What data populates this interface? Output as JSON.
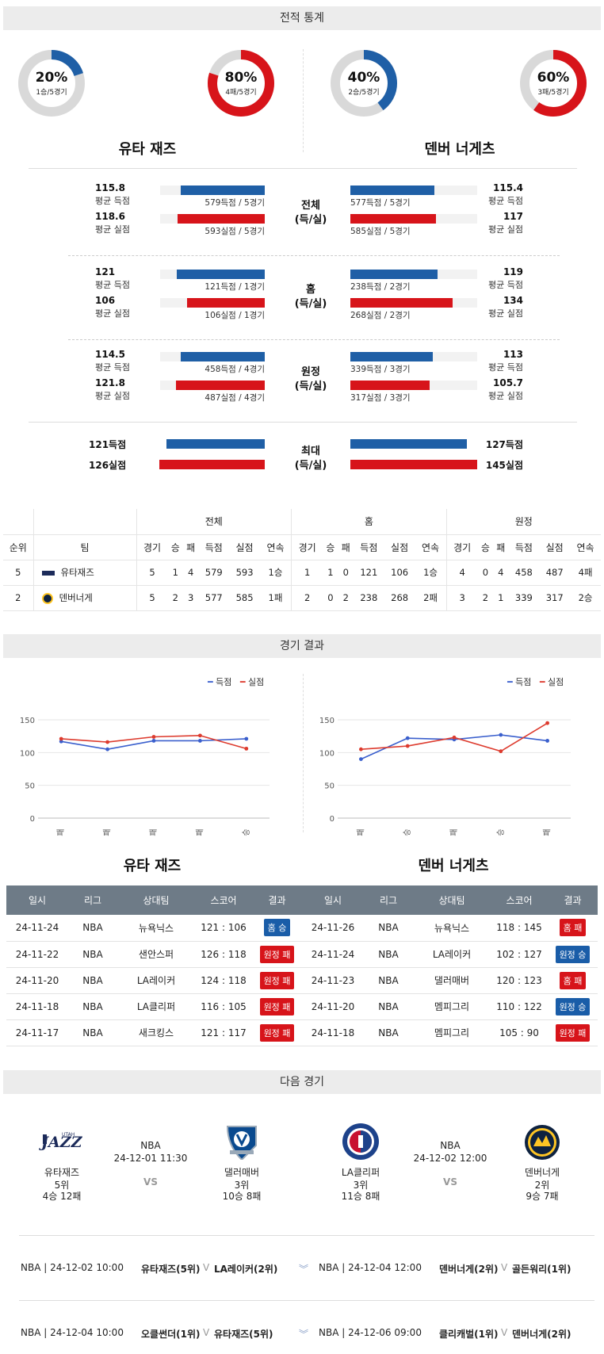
{
  "sections": {
    "stats": "전적 통계",
    "results": "경기 결과",
    "next": "다음 경기"
  },
  "teams": {
    "home": "유타 재즈",
    "away": "덴버 너게츠"
  },
  "donuts": [
    {
      "pct": "20%",
      "sub": "1승/5경기",
      "value": 0.2,
      "color": "#1f5fa6"
    },
    {
      "pct": "80%",
      "sub": "4패/5경기",
      "value": 0.8,
      "color": "#d7141a"
    },
    {
      "pct": "40%",
      "sub": "2승/5경기",
      "value": 0.4,
      "color": "#1f5fa6"
    },
    {
      "pct": "60%",
      "sub": "3패/5경기",
      "value": 0.6,
      "color": "#d7141a"
    }
  ],
  "stat_groups": [
    {
      "center": [
        "전체",
        "(득/실)"
      ],
      "left": [
        {
          "val": "115.8",
          "lbl": "평균 득점",
          "bar": "579득점 / 5경기",
          "ratio": 0.8
        },
        {
          "val": "118.6",
          "lbl": "평균 실점",
          "bar": "593실점 / 5경기",
          "ratio": 0.83
        }
      ],
      "right": [
        {
          "val": "115.4",
          "lbl": "평균 득점",
          "bar": "577득점 / 5경기",
          "ratio": 0.8
        },
        {
          "val": "117",
          "lbl": "평균 실점",
          "bar": "585실점 / 5경기",
          "ratio": 0.82
        }
      ]
    },
    {
      "center": [
        "홈",
        "(득/실)"
      ],
      "left": [
        {
          "val": "121",
          "lbl": "평균 득점",
          "bar": "121득점 / 1경기",
          "ratio": 0.84
        },
        {
          "val": "106",
          "lbl": "평균 실점",
          "bar": "106실점 / 1경기",
          "ratio": 0.74
        }
      ],
      "right": [
        {
          "val": "119",
          "lbl": "평균 득점",
          "bar": "238득점 / 2경기",
          "ratio": 0.83
        },
        {
          "val": "134",
          "lbl": "평균 실점",
          "bar": "268실점 / 2경기",
          "ratio": 0.98
        }
      ]
    },
    {
      "center": [
        "원정",
        "(득/실)"
      ],
      "left": [
        {
          "val": "114.5",
          "lbl": "평균 득점",
          "bar": "458득점 / 4경기",
          "ratio": 0.8
        },
        {
          "val": "121.8",
          "lbl": "평균 실점",
          "bar": "487실점 / 4경기",
          "ratio": 0.85
        }
      ],
      "right": [
        {
          "val": "113",
          "lbl": "평균 득점",
          "bar": "339득점 / 3경기",
          "ratio": 0.79
        },
        {
          "val": "105.7",
          "lbl": "평균 실점",
          "bar": "317실점 / 3경기",
          "ratio": 0.76
        }
      ]
    }
  ],
  "max_group": {
    "center": [
      "최대",
      "(득/실)"
    ],
    "left": [
      {
        "val": "121득점",
        "ratio": 0.84
      },
      {
        "val": "126실점",
        "ratio": 0.9
      }
    ],
    "right": [
      {
        "val": "127득점",
        "ratio": 0.92
      },
      {
        "val": "145실점",
        "ratio": 1.0
      }
    ]
  },
  "standings": {
    "groups": [
      "전체",
      "홈",
      "원정"
    ],
    "cols": [
      "순위",
      "팀",
      "경기",
      "승",
      "패",
      "득점",
      "실점",
      "연속",
      "경기",
      "승",
      "패",
      "득점",
      "실점",
      "연속",
      "경기",
      "승",
      "패",
      "득점",
      "실점",
      "연속"
    ],
    "rows": [
      [
        "5",
        "유타재즈",
        "5",
        "1",
        "4",
        "579",
        "593",
        "1승",
        "1",
        "1",
        "0",
        "121",
        "106",
        "1승",
        "4",
        "0",
        "4",
        "458",
        "487",
        "4패"
      ],
      [
        "2",
        "덴버너게",
        "5",
        "2",
        "3",
        "577",
        "585",
        "1패",
        "2",
        "0",
        "2",
        "238",
        "268",
        "2패",
        "3",
        "2",
        "1",
        "339",
        "317",
        "2승"
      ]
    ]
  },
  "legend": {
    "score": "득점",
    "allowed": "실점"
  },
  "chart_data": [
    {
      "type": "line",
      "x": [
        "패",
        "패",
        "패",
        "패",
        "승"
      ],
      "ylim": [
        0,
        150
      ],
      "yticks": [
        0,
        50,
        100,
        150
      ],
      "series": [
        {
          "name": "득점",
          "values": [
            117,
            105,
            118,
            118,
            121
          ],
          "color": "#3a5fcd"
        },
        {
          "name": "실점",
          "values": [
            121,
            116,
            124,
            126,
            106
          ],
          "color": "#dd3b2e"
        }
      ]
    },
    {
      "type": "line",
      "x": [
        "패",
        "승",
        "패",
        "승",
        "패"
      ],
      "ylim": [
        0,
        150
      ],
      "yticks": [
        0,
        50,
        100,
        150
      ],
      "series": [
        {
          "name": "득점",
          "values": [
            90,
            122,
            120,
            127,
            118
          ],
          "color": "#3a5fcd"
        },
        {
          "name": "실점",
          "values": [
            105,
            110,
            123,
            102,
            145
          ],
          "color": "#dd3b2e"
        }
      ]
    }
  ],
  "results": {
    "headers": [
      "일시",
      "리그",
      "상대팀",
      "스코어",
      "결과"
    ],
    "home": [
      [
        "24-11-24",
        "NBA",
        "뉴욕닉스",
        "121 : 106",
        "홈 승",
        "blue"
      ],
      [
        "24-11-22",
        "NBA",
        "샌안스퍼",
        "126 : 118",
        "원정 패",
        "red"
      ],
      [
        "24-11-20",
        "NBA",
        "LA레이커",
        "124 : 118",
        "원정 패",
        "red"
      ],
      [
        "24-11-18",
        "NBA",
        "LA클리퍼",
        "116 : 105",
        "원정 패",
        "red"
      ],
      [
        "24-11-17",
        "NBA",
        "새크킹스",
        "121 : 117",
        "원정 패",
        "red"
      ]
    ],
    "away": [
      [
        "24-11-26",
        "NBA",
        "뉴욕닉스",
        "118 : 145",
        "홈 패",
        "red"
      ],
      [
        "24-11-24",
        "NBA",
        "LA레이커",
        "102 : 127",
        "원정 승",
        "blue"
      ],
      [
        "24-11-23",
        "NBA",
        "댈러매버",
        "120 : 123",
        "홈 패",
        "red"
      ],
      [
        "24-11-20",
        "NBA",
        "멤피그리",
        "110 : 122",
        "원정 승",
        "blue"
      ],
      [
        "24-11-18",
        "NBA",
        "멤피그리",
        "105 : 90",
        "원정 패",
        "red"
      ]
    ]
  },
  "next_games": [
    {
      "league": "NBA",
      "date": "24-12-01 11:30",
      "vs": "VS",
      "t1": {
        "name": "유타재즈",
        "rank": "5위",
        "rec": "4승 12패"
      },
      "t2": {
        "name": "댈러매버",
        "rank": "3위",
        "rec": "10승 8패"
      }
    },
    {
      "league": "NBA",
      "date": "24-12-02 12:00",
      "vs": "VS",
      "t1": {
        "name": "LA클리퍼",
        "rank": "3위",
        "rec": "11승 8패"
      },
      "t2": {
        "name": "덴버너게",
        "rank": "2위",
        "rec": "9승 7패"
      }
    }
  ],
  "schedule": [
    {
      "l": {
        "info": "NBA | 24-12-02 10:00",
        "a": "유타재즈(5위)",
        "b": "LA레이커(2위)"
      },
      "r": {
        "info": "NBA | 24-12-04 12:00",
        "a": "덴버너게(2위)",
        "b": "골든워리(1위)"
      }
    },
    {
      "l": {
        "info": "NBA | 24-12-04 10:00",
        "a": "오클썬더(1위)",
        "b": "유타재즈(5위)"
      },
      "r": {
        "info": "NBA | 24-12-06 09:00",
        "a": "클리캐벌(1위)",
        "b": "덴버너게(2위)"
      }
    }
  ]
}
